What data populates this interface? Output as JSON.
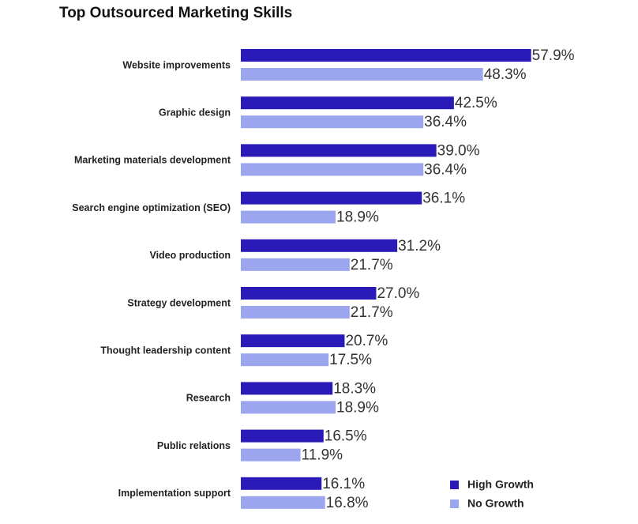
{
  "chart_data": {
    "type": "bar",
    "orientation": "horizontal",
    "title": "Top Outsourced Marketing Skills",
    "categories": [
      "Website improvements",
      "Graphic design",
      "Marketing materials development",
      "Search engine optimization (SEO)",
      "Video production",
      "Strategy development",
      "Thought leadership content",
      "Research",
      "Public relations",
      "Implementation support"
    ],
    "series": [
      {
        "name": "High Growth",
        "color": "#2a1bb8",
        "values": [
          57.9,
          42.5,
          39.0,
          36.1,
          31.2,
          27.0,
          20.7,
          18.3,
          16.5,
          16.1
        ],
        "labels": [
          "57.9%",
          "42.5%",
          "39.0%",
          "36.1%",
          "31.2%",
          "27.0%",
          "20.7%",
          "18.3%",
          "16.5%",
          "16.1%"
        ]
      },
      {
        "name": "No Growth",
        "color": "#9ba6ef",
        "values": [
          48.3,
          36.4,
          36.4,
          18.9,
          21.7,
          21.7,
          17.5,
          18.9,
          11.9,
          16.8
        ],
        "labels": [
          "48.3%",
          "36.4%",
          "36.4%",
          "18.9%",
          "21.7%",
          "21.7%",
          "17.5%",
          "18.9%",
          "11.9%",
          "16.8%"
        ]
      }
    ],
    "value_unit": "%",
    "xlim": [
      0,
      100
    ],
    "grid": false,
    "axes_visible": false,
    "legend_position": "bottom-right"
  }
}
